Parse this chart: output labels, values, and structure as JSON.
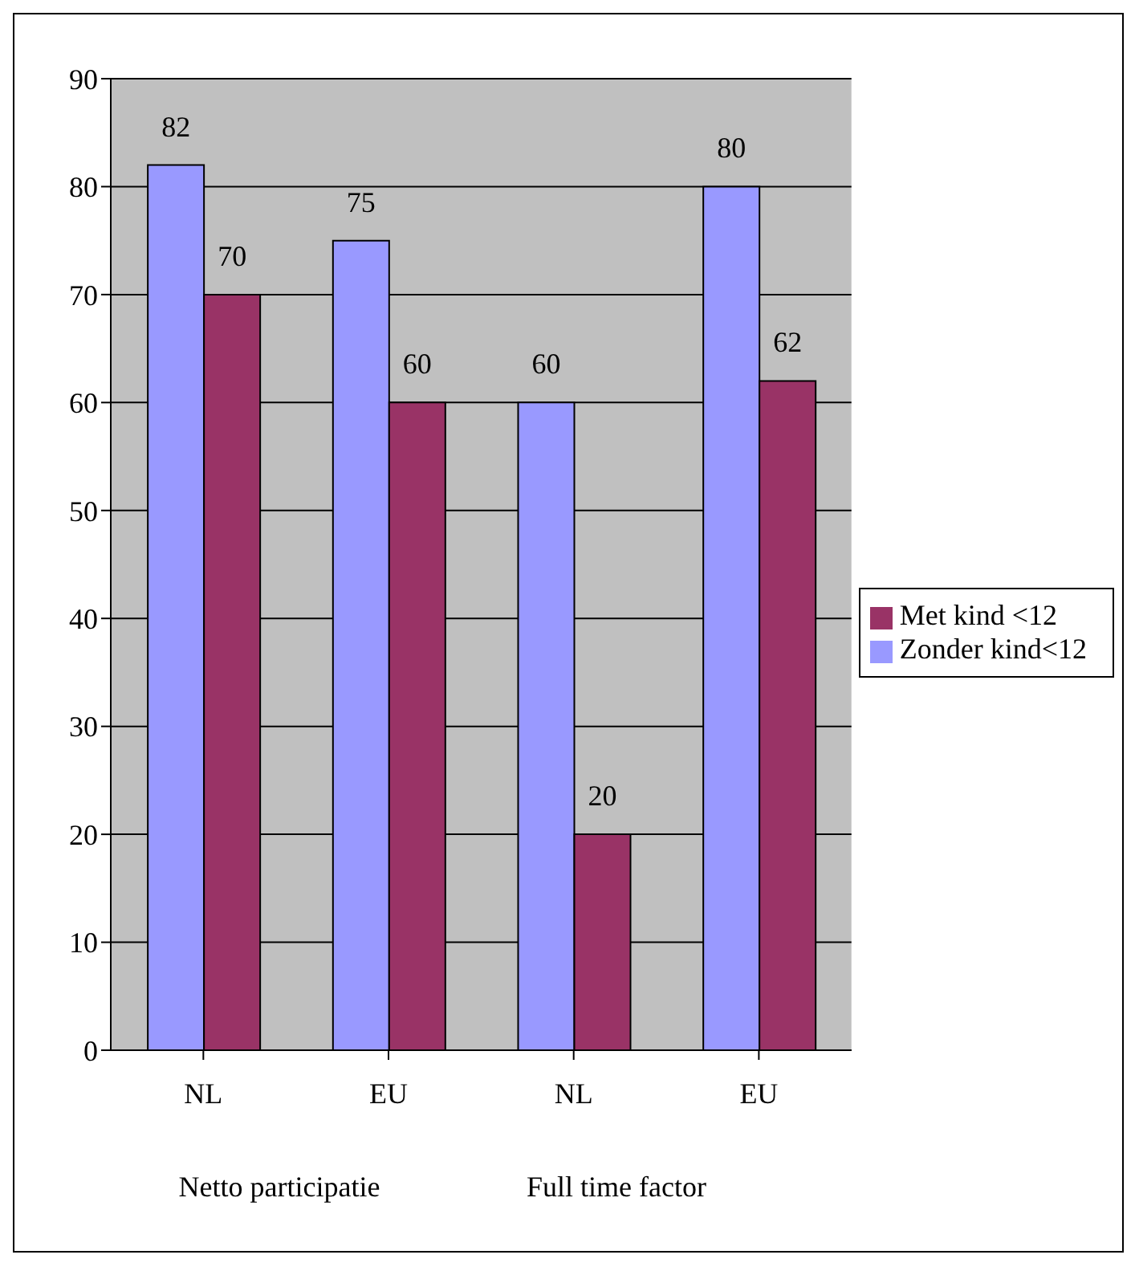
{
  "chart_data": {
    "type": "bar",
    "categories": [
      "NL",
      "EU",
      "NL",
      "EU"
    ],
    "series": [
      {
        "name": "Zonder kind<12",
        "color": "#9999ff",
        "values": [
          82,
          75,
          60,
          80
        ]
      },
      {
        "name": "Met kind <12",
        "color": "#993366",
        "values": [
          70,
          60,
          20,
          62
        ]
      }
    ],
    "annotations": [
      "Netto participatie",
      "Full time factor"
    ],
    "ylim": [
      0,
      90
    ],
    "yticks": [
      0,
      10,
      20,
      30,
      40,
      50,
      60,
      70,
      80,
      90
    ],
    "grid": "y",
    "legend": "right",
    "data_labels": true
  }
}
